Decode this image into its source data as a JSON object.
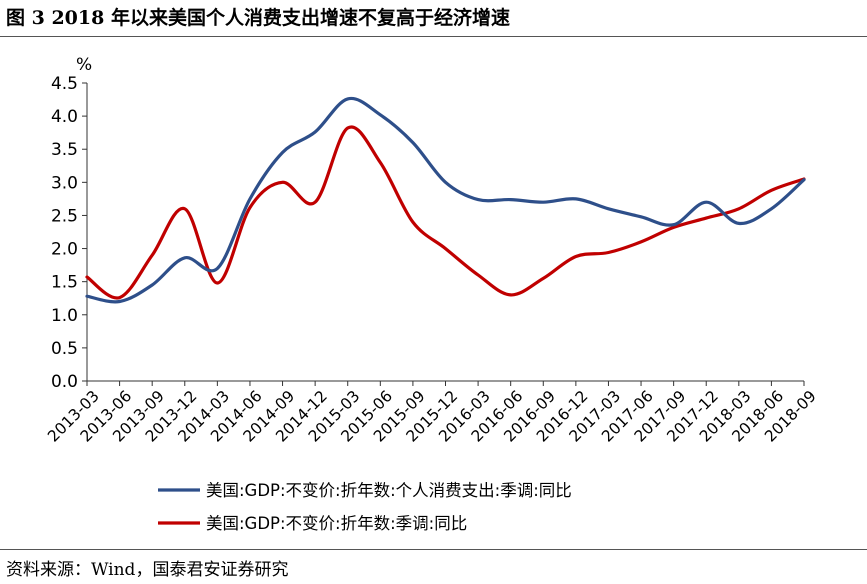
{
  "figure": {
    "title": "图 3   2018 年以来美国个人消费支出增速不复高于经济增速",
    "source": "资料来源：Wind，国泰君安证券研究"
  },
  "chart_data": {
    "type": "line",
    "unit_label": "%",
    "x": [
      "2013-03",
      "2013-06",
      "2013-09",
      "2013-12",
      "2014-03",
      "2014-06",
      "2014-09",
      "2014-12",
      "2015-03",
      "2015-06",
      "2015-09",
      "2015-12",
      "2016-03",
      "2016-06",
      "2016-09",
      "2016-12",
      "2017-03",
      "2017-06",
      "2017-09",
      "2017-12",
      "2018-03",
      "2018-06",
      "2018-09"
    ],
    "ylim": [
      0,
      4.5
    ],
    "yticks": [
      "0.0",
      "0.5",
      "1.0",
      "1.5",
      "2.0",
      "2.5",
      "3.0",
      "3.5",
      "4.0",
      "4.5"
    ],
    "grid": false,
    "legend_position": "bottom",
    "series": [
      {
        "name": "美国:GDP:不变价:折年数:个人消费支出:季调:同比",
        "color": "#2e4f8a",
        "values": [
          1.28,
          1.2,
          1.45,
          1.86,
          1.7,
          2.75,
          3.45,
          3.76,
          4.26,
          4.02,
          3.6,
          3.0,
          2.74,
          2.74,
          2.7,
          2.75,
          2.6,
          2.48,
          2.36,
          2.7,
          2.38,
          2.6,
          3.04
        ]
      },
      {
        "name": "美国:GDP:不变价:折年数:季调:同比",
        "color": "#c00000",
        "values": [
          1.57,
          1.26,
          1.9,
          2.6,
          1.48,
          2.62,
          3.0,
          2.7,
          3.82,
          3.3,
          2.4,
          2.0,
          1.6,
          1.3,
          1.55,
          1.88,
          1.94,
          2.1,
          2.32,
          2.46,
          2.6,
          2.88,
          3.05
        ]
      }
    ]
  }
}
